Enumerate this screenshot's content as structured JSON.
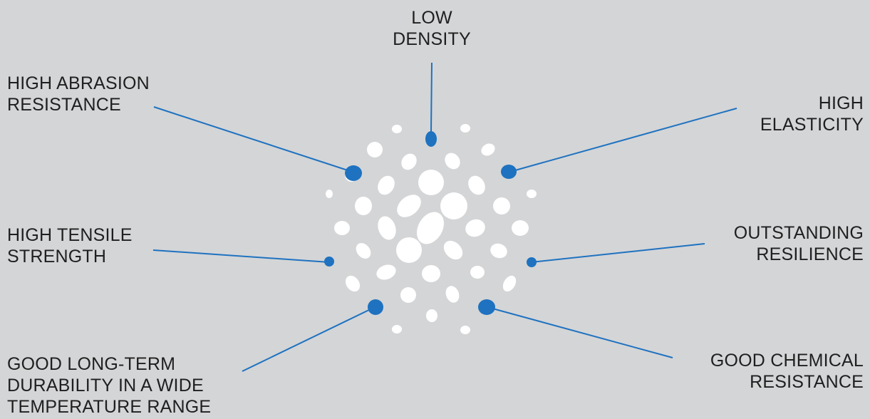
{
  "colors": {
    "background": "#d4d5d7",
    "accent": "#1e72c0",
    "particle": "#ffffff",
    "text": "#1f1f1f"
  },
  "labels": {
    "low_density": "LOW\nDENSITY",
    "high_abrasion": "HIGH ABRASION\nRESISTANCE",
    "high_elasticity": "HIGH\nELASTICITY",
    "high_tensile": "HIGH TENSILE\nSTRENGTH",
    "outstanding_resilience": "OUTSTANDING\nRESILIENCE",
    "good_durability": "GOOD LONG-TERM\nDURABILITY IN A WIDE\nTEMPERATURE RANGE",
    "good_chemical": "GOOD CHEMICAL\nRESISTANCE"
  }
}
